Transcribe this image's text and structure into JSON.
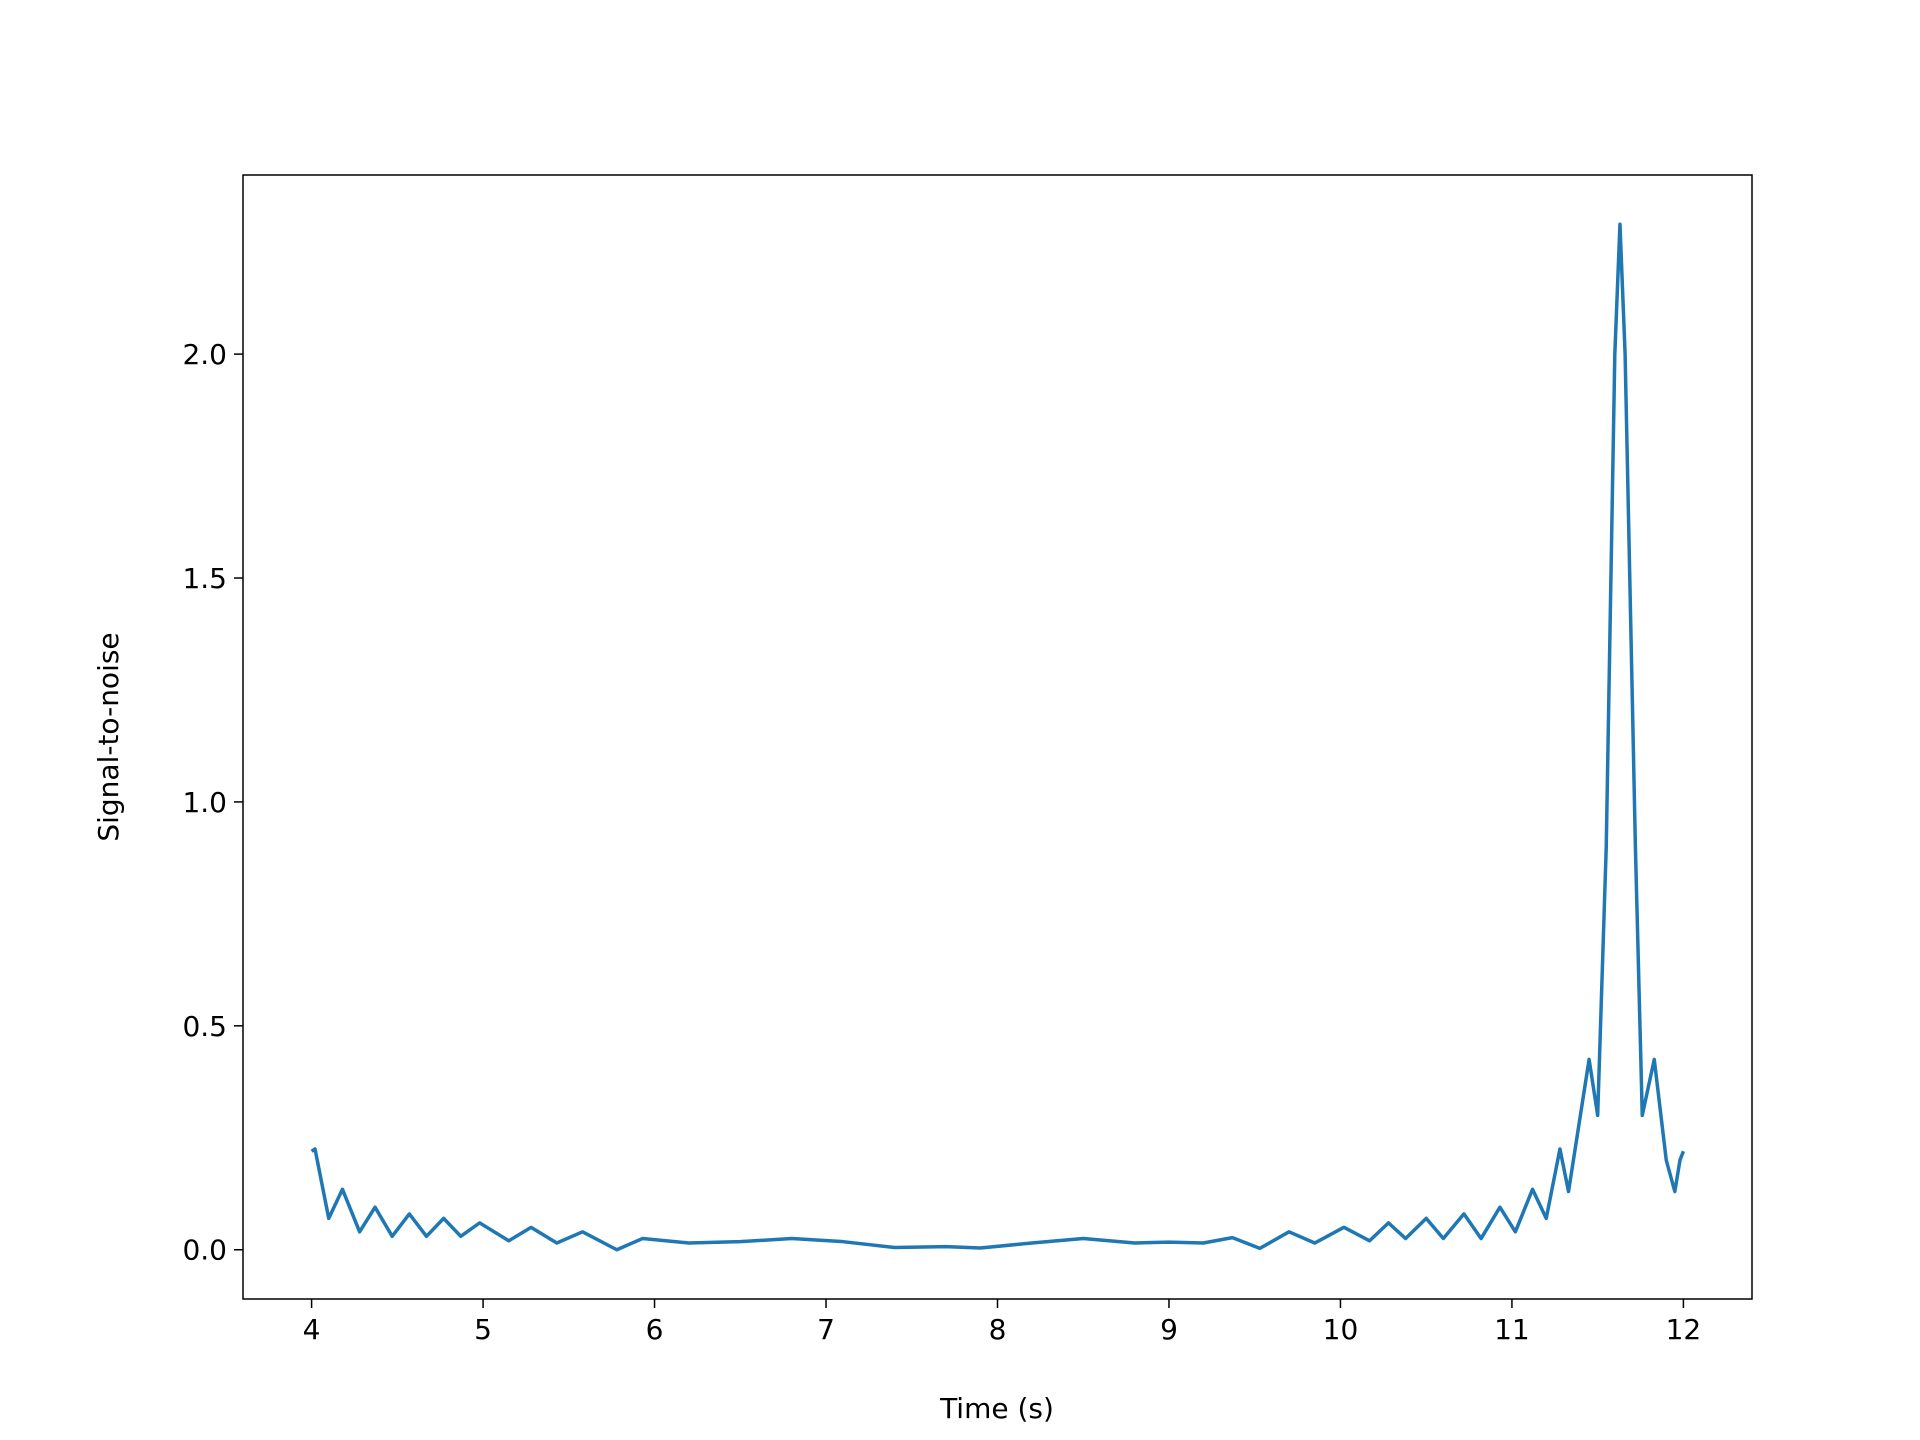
{
  "chart_data": {
    "type": "line",
    "x_label": "Time (s)",
    "y_label": "Signal-to-noise",
    "x": [
      4.0,
      4.02,
      4.1,
      4.18,
      4.28,
      4.37,
      4.47,
      4.57,
      4.67,
      4.77,
      4.87,
      4.98,
      5.15,
      5.28,
      5.43,
      5.58,
      5.78,
      5.93,
      6.2,
      6.5,
      6.8,
      7.1,
      7.4,
      7.7,
      7.9,
      8.2,
      8.5,
      8.8,
      9.0,
      9.2,
      9.37,
      9.53,
      9.7,
      9.85,
      10.02,
      10.17,
      10.28,
      10.38,
      10.5,
      10.6,
      10.72,
      10.82,
      10.93,
      11.02,
      11.12,
      11.2,
      11.28,
      11.33,
      11.45,
      11.5,
      11.55,
      11.6,
      11.63,
      11.66,
      11.72,
      11.76,
      11.83,
      11.9,
      11.95,
      11.98,
      12.0
    ],
    "series": [
      {
        "color": "#1f77b4",
        "values": [
          0.22,
          0.225,
          0.07,
          0.135,
          0.04,
          0.095,
          0.03,
          0.08,
          0.03,
          0.07,
          0.03,
          0.06,
          0.02,
          0.05,
          0.015,
          0.04,
          0.0,
          0.025,
          0.015,
          0.018,
          0.025,
          0.018,
          0.005,
          0.007,
          0.004,
          0.015,
          0.025,
          0.015,
          0.017,
          0.015,
          0.027,
          0.003,
          0.04,
          0.015,
          0.05,
          0.02,
          0.06,
          0.025,
          0.07,
          0.025,
          0.08,
          0.025,
          0.095,
          0.04,
          0.135,
          0.07,
          0.225,
          0.13,
          0.425,
          0.3,
          0.9,
          2.0,
          2.29,
          2.0,
          0.9,
          0.3,
          0.425,
          0.2,
          0.13,
          0.2,
          0.22
        ]
      }
    ],
    "xlim": [
      3.6,
      12.4
    ],
    "ylim": [
      -0.11,
      2.4
    ],
    "xticks": [
      4,
      5,
      6,
      7,
      8,
      9,
      10,
      11,
      12
    ],
    "yticks": [
      {
        "value": 0,
        "label": "0.0"
      },
      0.5,
      {
        "value": 1,
        "label": "1.0"
      },
      1.5,
      {
        "value": 2,
        "label": "2.0"
      }
    ]
  }
}
